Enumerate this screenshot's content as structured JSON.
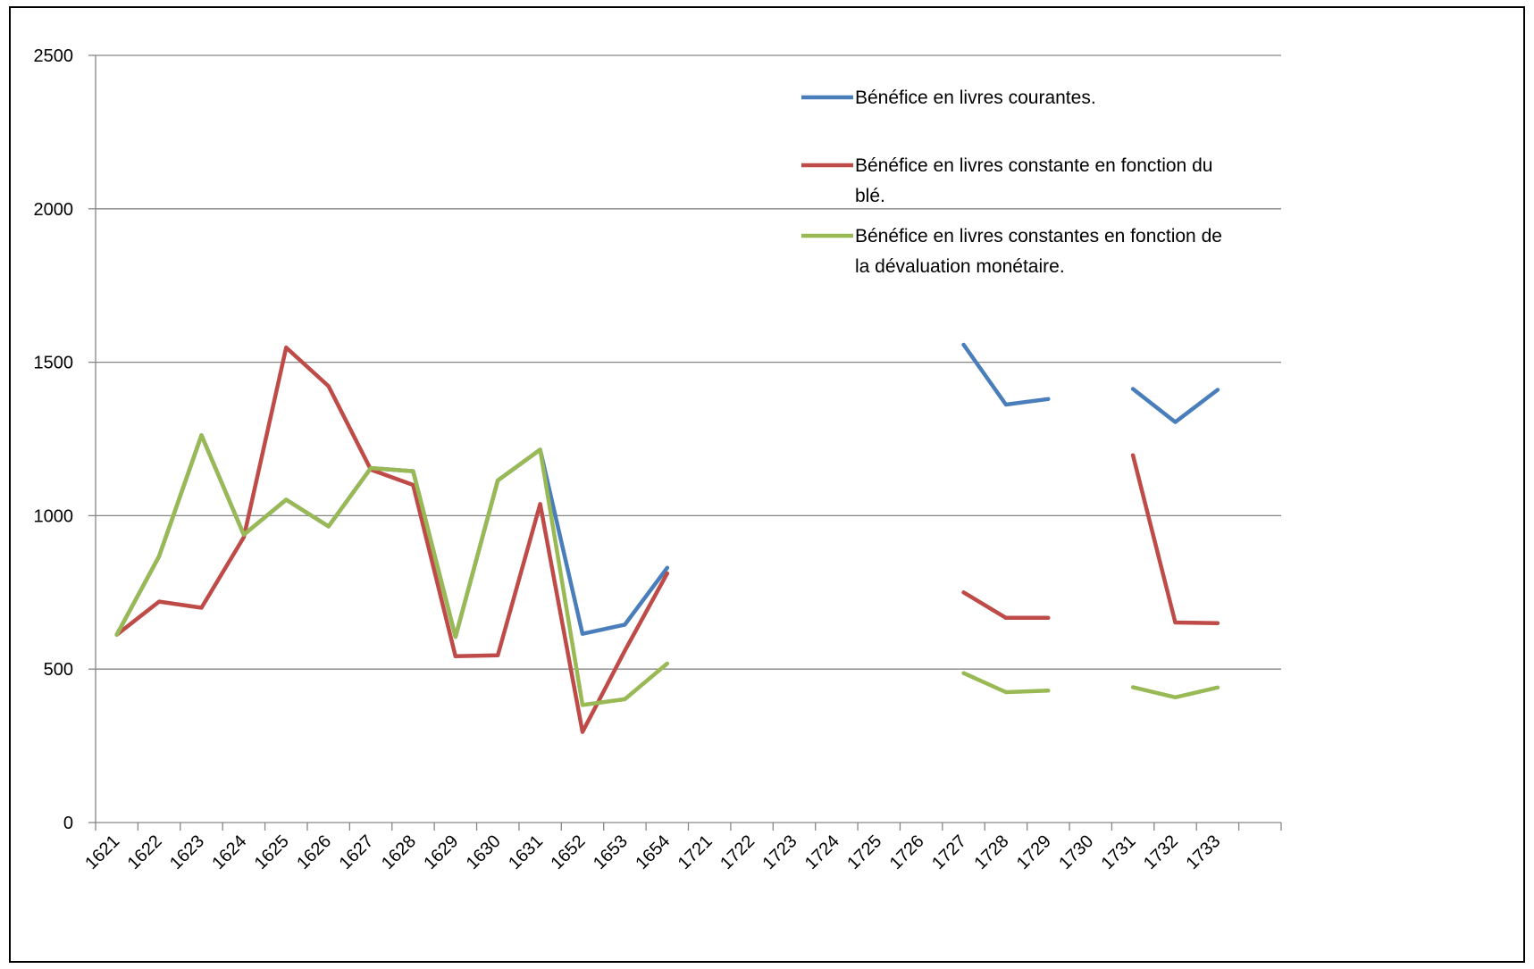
{
  "chart_data": {
    "type": "line",
    "title": "",
    "xlabel": "",
    "ylabel": "",
    "ylim": [
      0,
      2500
    ],
    "yticks": [
      0,
      500,
      1000,
      1500,
      2000,
      2500
    ],
    "grid": true,
    "legend_position": "top-right",
    "categories": [
      "1621",
      "1622",
      "1623",
      "1624",
      "1625",
      "1626",
      "1627",
      "1628",
      "1629",
      "1630",
      "1631",
      "1652",
      "1653",
      "1654",
      "1721",
      "1722",
      "1723",
      "1724",
      "1725",
      "1726",
      "1727",
      "1728",
      "1729",
      "1730",
      "1731",
      "1732",
      "1733"
    ],
    "series": [
      {
        "name": "Bénéfice en livres courantes.",
        "color": "#4a7ebb",
        "values": [
          612,
          868,
          1262,
          938,
          1052,
          965,
          1155,
          1145,
          605,
          1115,
          1215,
          615,
          645,
          830,
          null,
          null,
          null,
          null,
          null,
          null,
          1557,
          1362,
          1380,
          null,
          1413,
          1305,
          1410
        ]
      },
      {
        "name": "Bénéfice en livres constante en fonction du blé.",
        "name_lines": [
          "Bénéfice en livres constante en fonction du",
          "blé."
        ],
        "color": "#be4b48",
        "values": [
          612,
          720,
          700,
          930,
          1548,
          1422,
          1150,
          1100,
          542,
          545,
          1038,
          295,
          560,
          812,
          null,
          null,
          null,
          null,
          null,
          null,
          750,
          667,
          667,
          null,
          1197,
          652,
          650
        ]
      },
      {
        "name": "Bénéfice en livres constantes en fonction de la dévaluation monétaire.",
        "name_lines": [
          "Bénéfice en livres constantes en fonction de",
          "la dévaluation monétaire."
        ],
        "color": "#98b954",
        "values": [
          612,
          868,
          1262,
          938,
          1052,
          965,
          1155,
          1145,
          605,
          1115,
          1215,
          383,
          402,
          518,
          null,
          null,
          null,
          null,
          null,
          null,
          487,
          425,
          430,
          null,
          441,
          408,
          440
        ]
      }
    ]
  }
}
